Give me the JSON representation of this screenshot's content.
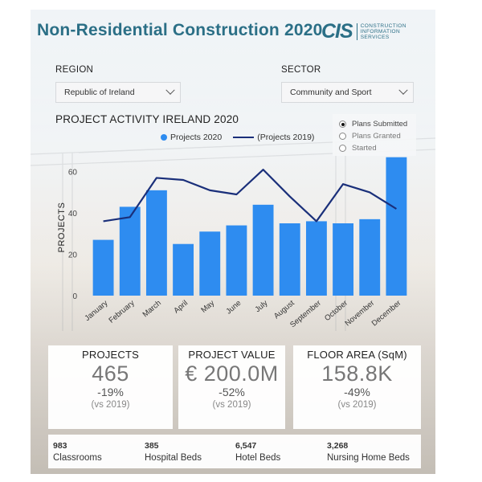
{
  "title": "Non-Residential Construction 2020",
  "logo": {
    "mark": "CIS",
    "line1": "CONSTRUCTION",
    "line2": "INFORMATION",
    "line3": "SERVICES"
  },
  "filters": {
    "region": {
      "label": "REGION",
      "value": "Republic of Ireland"
    },
    "sector": {
      "label": "SECTOR",
      "value": "Community and Sport"
    }
  },
  "radio_options": [
    {
      "label": "Plans Submitted",
      "selected": true
    },
    {
      "label": "Plans Granted",
      "selected": false
    },
    {
      "label": "Started",
      "selected": false
    }
  ],
  "chart_data": {
    "type": "bar",
    "title": "PROJECT ACTIVITY IRELAND 2020",
    "ylabel": "PROJECTS",
    "xlabel": "",
    "ylim": [
      0,
      70
    ],
    "yticks": [
      0,
      20,
      40,
      60
    ],
    "categories": [
      "January",
      "February",
      "March",
      "April",
      "May",
      "June",
      "July",
      "August",
      "September",
      "October",
      "November",
      "December"
    ],
    "series": [
      {
        "name": "Projects 2020",
        "type": "bar",
        "color": "#2e8cf0",
        "values": [
          27,
          43,
          51,
          25,
          31,
          34,
          44,
          35,
          36,
          35,
          37,
          67
        ]
      },
      {
        "name": "(Projects 2019)",
        "type": "line",
        "color": "#1a2f7a",
        "values": [
          36,
          38,
          57,
          56,
          51,
          49,
          61,
          48,
          36,
          54,
          50,
          42
        ]
      }
    ],
    "legend_position": "top-center"
  },
  "kpis": [
    {
      "label": "PROJECTS",
      "value": "465",
      "change": "-19%",
      "vs": "(vs 2019)"
    },
    {
      "label": "PROJECT VALUE",
      "value": "€ 200.0M",
      "change": "-52%",
      "vs": "(vs 2019)"
    },
    {
      "label": "FLOOR AREA (SqM)",
      "value": "158.8K",
      "change": "-49%",
      "vs": "(vs 2019)"
    }
  ],
  "facts": [
    {
      "num": "983",
      "label": "Classrooms"
    },
    {
      "num": "385",
      "label": "Hospital Beds"
    },
    {
      "num": "6,547",
      "label": "Hotel Beds"
    },
    {
      "num": "3,268",
      "label": "Nursing Home Beds"
    }
  ]
}
